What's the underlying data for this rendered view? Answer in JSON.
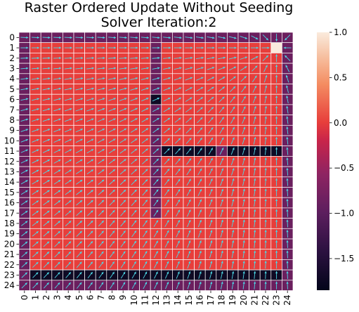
{
  "chart_data": {
    "type": "heatmap",
    "title_lines": [
      "Raster Ordered Update Without Seeding",
      "Solver Iteration:2"
    ],
    "x_ticks": [
      "0",
      "1",
      "2",
      "3",
      "4",
      "5",
      "6",
      "7",
      "8",
      "9",
      "10",
      "11",
      "12",
      "13",
      "14",
      "15",
      "16",
      "17",
      "18",
      "19",
      "20",
      "21",
      "22",
      "23",
      "24"
    ],
    "y_ticks": [
      "0",
      "1",
      "2",
      "3",
      "4",
      "5",
      "6",
      "7",
      "8",
      "9",
      "10",
      "11",
      "12",
      "13",
      "14",
      "15",
      "16",
      "17",
      "18",
      "19",
      "20",
      "21",
      "22",
      "23",
      "24"
    ],
    "grid_size": 25,
    "colorbar": {
      "min": -1.85,
      "max": 1.0,
      "ticks": [
        1.0,
        0.5,
        0.0,
        -0.5,
        -1.0,
        -1.5
      ],
      "tick_labels": [
        "1.0",
        "0.5",
        "0.0",
        "−0.5",
        "−1.0",
        "−1.5"
      ]
    },
    "values": {
      "border_value": -1.0,
      "interior_value": 0.0,
      "target_cell": {
        "row": 1,
        "col": 23,
        "value": 1.0
      },
      "wall_column": {
        "col": 12,
        "rows": [
          1,
          17
        ],
        "value": -1.0
      },
      "wall_column_dark_cells": [
        {
          "row": 6,
          "col": 12,
          "value": -1.85
        }
      ],
      "dark_segments": [
        {
          "row": 11,
          "cols": [
            13,
            17
          ],
          "value": -1.85
        },
        {
          "row": 11,
          "cols": [
            19,
            23
          ],
          "value": -1.85
        },
        {
          "row": 23,
          "cols": [
            1,
            23
          ],
          "value": -1.85
        }
      ],
      "mid_dark_cells": [
        {
          "row": 11,
          "col": 18,
          "value": -1.0
        }
      ]
    },
    "colors": {
      "grid_line": "#ffffff",
      "arrow": "#4dd9e6"
    }
  }
}
